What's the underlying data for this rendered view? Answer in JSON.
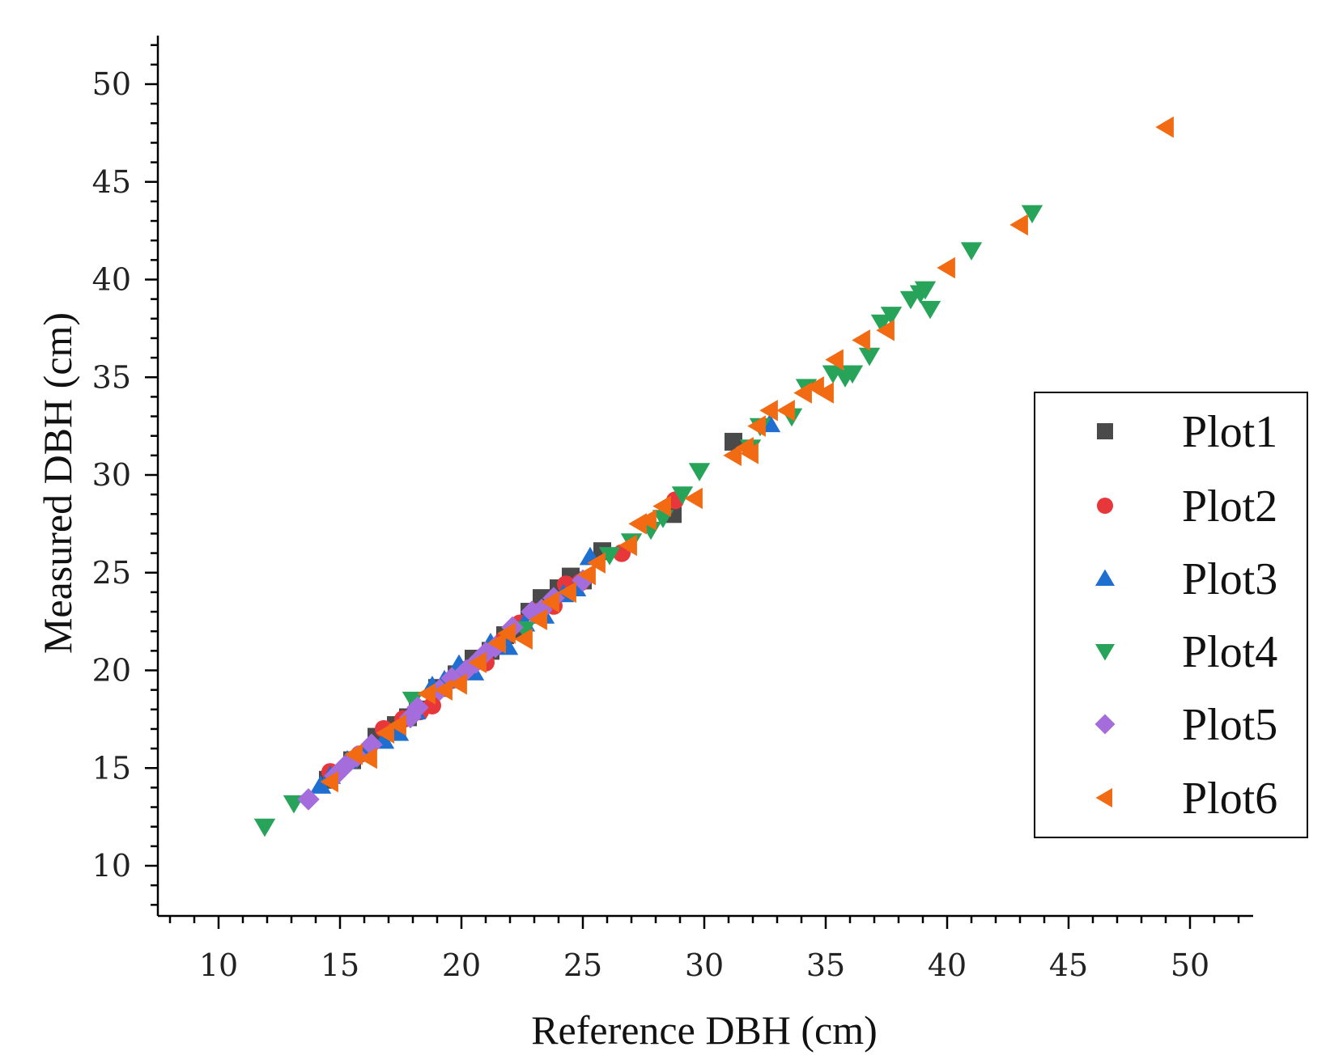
{
  "chart_data": {
    "type": "scatter",
    "title": "",
    "xlabel": "Reference DBH (cm)",
    "ylabel": "Measured DBH (cm)",
    "xlim": [
      7.5,
      52.5
    ],
    "ylim": [
      7.5,
      52.5
    ],
    "xticks": [
      10,
      15,
      20,
      25,
      30,
      35,
      40,
      45,
      50
    ],
    "yticks": [
      10,
      15,
      20,
      25,
      30,
      35,
      40,
      45,
      50
    ],
    "grid": false,
    "legend_position": "right",
    "series": [
      {
        "name": "Plot1",
        "marker": "square",
        "color": "#4a4a4a",
        "x": [
          14.5,
          15.5,
          16.5,
          17.3,
          17.8,
          18.2,
          19.0,
          19.8,
          20.5,
          21.2,
          21.8,
          22.3,
          22.8,
          23.3,
          24.0,
          24.5,
          25.0,
          25.8,
          28.7,
          31.2
        ],
        "y": [
          14.4,
          15.4,
          16.6,
          17.2,
          17.6,
          18.0,
          19.1,
          19.8,
          20.6,
          21.0,
          21.8,
          22.1,
          23.0,
          23.7,
          24.2,
          24.8,
          24.6,
          26.1,
          28.0,
          31.7
        ]
      },
      {
        "name": "Plot2",
        "marker": "circle",
        "color": "#e8373b",
        "x": [
          14.6,
          15.8,
          16.8,
          17.6,
          18.3,
          18.8,
          19.6,
          20.3,
          21.0,
          21.7,
          22.4,
          23.1,
          23.8,
          24.3,
          24.9,
          26.6,
          28.8
        ],
        "y": [
          14.8,
          15.7,
          17.0,
          17.5,
          17.9,
          18.2,
          19.5,
          20.1,
          20.4,
          21.5,
          22.4,
          23.0,
          23.3,
          24.4,
          24.5,
          26.0,
          28.7
        ]
      },
      {
        "name": "Plot3",
        "marker": "triangle-up",
        "color": "#1f6fd1",
        "x": [
          14.2,
          14.6,
          15.3,
          16.1,
          16.8,
          17.4,
          18.1,
          18.8,
          19.3,
          19.9,
          20.5,
          21.2,
          21.9,
          22.6,
          23.4,
          24.2,
          24.7,
          25.3,
          32.7
        ],
        "y": [
          14.1,
          14.6,
          15.4,
          15.8,
          16.4,
          16.8,
          17.9,
          19.2,
          19.5,
          20.3,
          19.9,
          21.4,
          21.2,
          22.4,
          22.8,
          23.9,
          24.2,
          25.8,
          32.6
        ]
      },
      {
        "name": "Plot4",
        "marker": "triangle-down",
        "color": "#27a35a",
        "x": [
          11.9,
          13.1,
          18.0,
          22.6,
          26.1,
          27.0,
          27.8,
          28.3,
          29.1,
          29.8,
          31.9,
          32.3,
          33.6,
          34.2,
          35.3,
          35.8,
          36.1,
          36.8,
          37.3,
          37.7,
          38.5,
          38.9,
          39.1,
          39.3,
          41.0,
          43.5
        ],
        "y": [
          12.0,
          13.2,
          18.5,
          22.1,
          25.9,
          26.6,
          27.2,
          27.8,
          29.0,
          30.2,
          31.4,
          32.5,
          33.0,
          34.5,
          35.2,
          35.0,
          35.2,
          36.1,
          37.8,
          38.2,
          39.0,
          39.3,
          39.5,
          38.5,
          41.5,
          43.4
        ]
      },
      {
        "name": "Plot5",
        "marker": "diamond",
        "color": "#a56ddb",
        "x": [
          13.7,
          14.8,
          15.2,
          15.7,
          16.3,
          17.9,
          18.2,
          19.1,
          19.6,
          20.2,
          20.6,
          21.0,
          21.4,
          22.1,
          22.9,
          23.3,
          23.8,
          25.0
        ],
        "y": [
          13.4,
          14.6,
          15.1,
          15.6,
          16.2,
          17.6,
          18.1,
          19.0,
          19.6,
          20.0,
          20.4,
          20.9,
          21.2,
          22.2,
          23.0,
          23.1,
          23.7,
          24.6
        ]
      },
      {
        "name": "Plot6",
        "marker": "triangle-left",
        "color": "#f26a12",
        "x": [
          14.6,
          15.6,
          16.2,
          16.9,
          17.4,
          18.6,
          19.3,
          19.9,
          20.7,
          21.5,
          21.9,
          22.6,
          23.2,
          23.7,
          24.4,
          25.2,
          25.6,
          26.9,
          27.3,
          27.7,
          28.3,
          29.6,
          31.2,
          31.7,
          31.9,
          32.2,
          32.7,
          33.4,
          34.1,
          34.6,
          35.0,
          35.4,
          36.5,
          37.5,
          40.0,
          43.0,
          49.0
        ],
        "y": [
          14.3,
          15.7,
          15.5,
          16.8,
          17.2,
          18.8,
          19.0,
          19.3,
          20.4,
          21.4,
          21.9,
          21.6,
          22.6,
          23.5,
          24.0,
          24.9,
          25.5,
          26.4,
          27.5,
          27.7,
          28.4,
          28.8,
          31.0,
          31.4,
          31.1,
          32.5,
          33.3,
          33.3,
          34.2,
          34.5,
          34.2,
          35.9,
          36.9,
          37.4,
          40.6,
          42.8,
          47.8
        ]
      }
    ]
  }
}
